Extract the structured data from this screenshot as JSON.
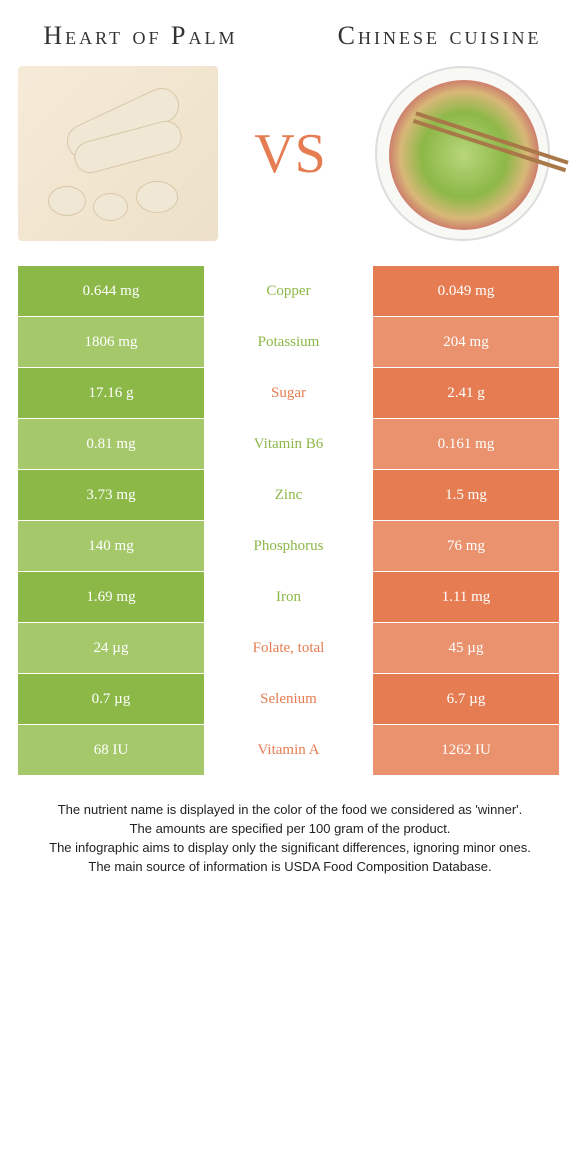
{
  "titles": {
    "left": "Heart of Palm",
    "right": "Chinese cuisine"
  },
  "vs_text": "VS",
  "colors": {
    "leftBg": "#8cb848",
    "rightBg": "#e67d52",
    "leftBgLight": "#a5c86a",
    "rightBgLight": "#e9926d",
    "midBg": "#ffffff"
  },
  "rows": [
    {
      "label": "Copper",
      "left": "0.644 mg",
      "right": "0.049 mg",
      "winner": "left"
    },
    {
      "label": "Potassium",
      "left": "1806 mg",
      "right": "204 mg",
      "winner": "left"
    },
    {
      "label": "Sugar",
      "left": "17.16 g",
      "right": "2.41 g",
      "winner": "right"
    },
    {
      "label": "Vitamin B6",
      "left": "0.81 mg",
      "right": "0.161 mg",
      "winner": "left"
    },
    {
      "label": "Zinc",
      "left": "3.73 mg",
      "right": "1.5 mg",
      "winner": "left"
    },
    {
      "label": "Phosphorus",
      "left": "140 mg",
      "right": "76 mg",
      "winner": "left"
    },
    {
      "label": "Iron",
      "left": "1.69 mg",
      "right": "1.11 mg",
      "winner": "left"
    },
    {
      "label": "Folate, total",
      "left": "24 µg",
      "right": "45 µg",
      "winner": "right"
    },
    {
      "label": "Selenium",
      "left": "0.7 µg",
      "right": "6.7 µg",
      "winner": "right"
    },
    {
      "label": "Vitamin A",
      "left": "68 IU",
      "right": "1262 IU",
      "winner": "right"
    }
  ],
  "footnotes": [
    "The nutrient name is displayed in the color of the food we considered as 'winner'.",
    "The amounts are specified per 100 gram of the product.",
    "The infographic aims to display only the significant differences, ignoring minor ones.",
    "The main source of information is USDA Food Composition Database."
  ]
}
